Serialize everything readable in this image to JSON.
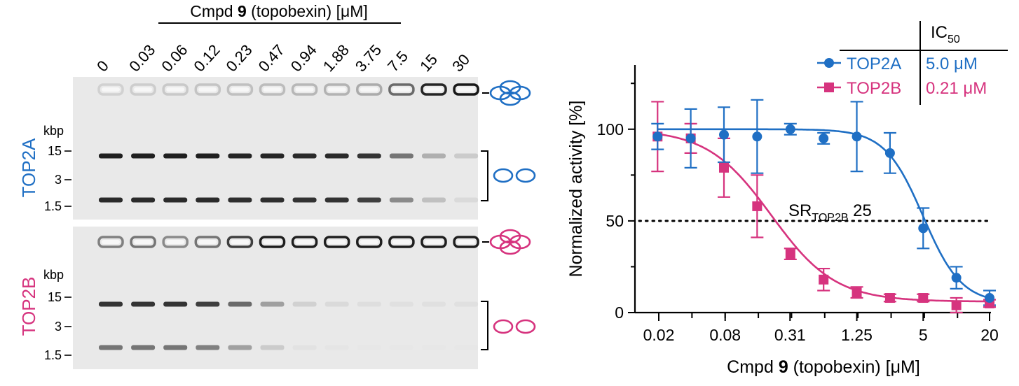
{
  "gel": {
    "title_prefix": "Cmpd ",
    "title_bold": "9",
    "title_suffix": " (topobexin) [μM]",
    "lanes": [
      "0",
      "0.03",
      "0.06",
      "0.12",
      "0.23",
      "0.47",
      "0.94",
      "1.88",
      "3.75",
      "7.5",
      "15",
      "30"
    ],
    "panels": [
      {
        "name": "TOP2A",
        "color": "#1f6fc4",
        "unit": "kbp",
        "markers": [
          "15",
          "3",
          "1.5"
        ],
        "kdna_intensity": [
          0.12,
          0.14,
          0.16,
          0.18,
          0.2,
          0.22,
          0.24,
          0.26,
          0.3,
          0.6,
          0.92,
          0.98
        ],
        "upper_band_intensity": [
          0.95,
          0.95,
          0.95,
          0.95,
          0.92,
          0.92,
          0.9,
          0.9,
          0.85,
          0.55,
          0.28,
          0.15
        ],
        "lower_band_intensity": [
          0.9,
          0.9,
          0.9,
          0.9,
          0.88,
          0.88,
          0.86,
          0.86,
          0.8,
          0.45,
          0.2,
          0.08
        ]
      },
      {
        "name": "TOP2B",
        "color": "#d6337e",
        "unit": "kbp",
        "markers": [
          "15",
          "3",
          "1.5"
        ],
        "kdna_intensity": [
          0.5,
          0.55,
          0.45,
          0.55,
          0.8,
          0.95,
          0.95,
          0.95,
          0.95,
          0.95,
          0.95,
          0.95
        ],
        "upper_band_intensity": [
          0.85,
          0.85,
          0.85,
          0.8,
          0.6,
          0.35,
          0.12,
          0.08,
          0.06,
          0.05,
          0.05,
          0.05
        ],
        "lower_band_intensity": [
          0.55,
          0.55,
          0.55,
          0.5,
          0.35,
          0.15,
          0.04,
          0.03,
          0.02,
          0.02,
          0.02,
          0.02
        ]
      }
    ]
  },
  "chart_data": {
    "type": "scatter",
    "xlabel_prefix": "Cmpd ",
    "xlabel_bold": "9",
    "xlabel_suffix": " (topobexin) [μM]",
    "ylabel": "Normalized activity [%]",
    "x_scale": "log2",
    "xlim": [
      0.02,
      20
    ],
    "ylim": [
      0,
      135
    ],
    "xticks": [
      0.02,
      0.08,
      0.31,
      1.25,
      5,
      20
    ],
    "xtick_labels": [
      "0.02",
      "0.08",
      "0.31",
      "1.25",
      "5",
      "20"
    ],
    "yticks": [
      0,
      50,
      100
    ],
    "ytick_labels": [
      "0",
      "50",
      "100"
    ],
    "x": [
      0.0195,
      0.039,
      0.078,
      0.156,
      0.3125,
      0.625,
      1.25,
      2.5,
      5,
      10,
      20
    ],
    "series": [
      {
        "name": "TOP2A",
        "color": "#1f6fc4",
        "marker": "circle",
        "ic50_label": "5.0 μM",
        "ic50": 5.0,
        "top": 100,
        "bottom": 5,
        "hill": 2.5,
        "values": [
          96,
          95,
          97,
          96,
          100,
          95,
          96,
          87,
          46,
          19,
          8
        ],
        "errors": [
          7,
          16,
          15,
          20,
          3,
          3,
          19,
          11,
          11,
          6,
          4
        ]
      },
      {
        "name": "TOP2B",
        "color": "#d6337e",
        "marker": "square",
        "ic50_label": "0.21 μM",
        "ic50": 0.21,
        "top": 100,
        "bottom": 6,
        "hill": 1.5,
        "values": [
          96,
          95,
          79,
          58,
          32,
          18,
          11,
          8,
          8,
          4,
          5
        ],
        "errors": [
          19,
          8,
          16,
          17,
          3,
          6,
          3,
          2,
          2,
          4,
          2
        ]
      }
    ],
    "reference_line": 50,
    "legend_header": "IC",
    "legend_header_sub": "50",
    "legend_position": "top-right",
    "annotation_main": "SR",
    "annotation_sub": "TOP2B",
    "annotation_value": " 25"
  }
}
